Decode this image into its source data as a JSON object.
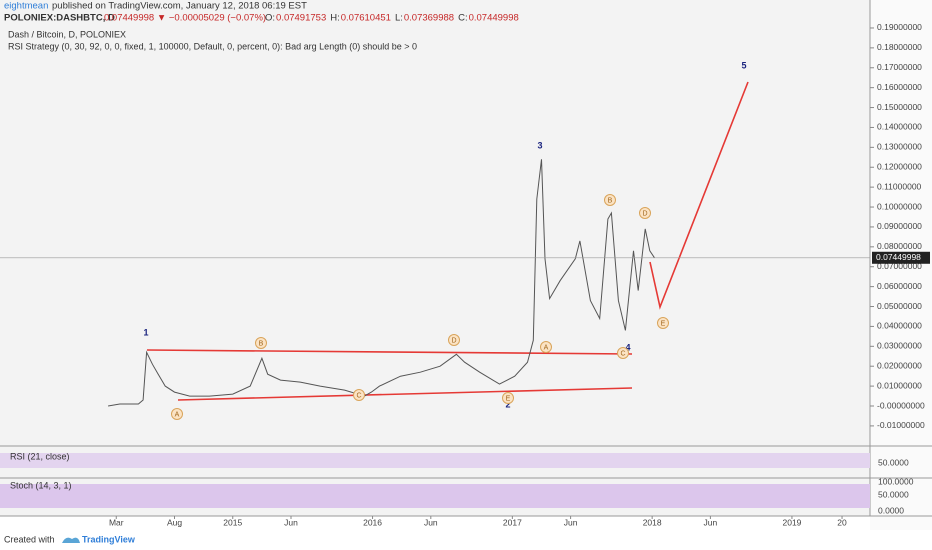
{
  "header": {
    "author": "eightmean",
    "published": "published on TradingView.com, January 12, 2018 06:19 EST",
    "symbol": "POLONIEX:DASHBTC, D",
    "change": "0.07449998 ▼ −0.00005029 (−0.07%)",
    "ohlc": [
      {
        "key": "O:",
        "value": "0.07491753"
      },
      {
        "key": "H:",
        "value": "0.07610451"
      },
      {
        "key": "L:",
        "value": "0.07369988"
      },
      {
        "key": "C:",
        "value": "0.07449998"
      }
    ]
  },
  "chart_data": {
    "type": "line",
    "title": "Dash / Bitcoin, D, POLONIEX",
    "subtitle": "RSI Strategy (0, 30, 92, 0, 0, fixed, 1, 100000, Default, 0, percent, 0): Bad arg Length (0) should be > 0",
    "color": "#555555",
    "x": [
      1.3,
      2.3,
      3.9,
      4.3,
      4.6,
      5.1,
      5.6,
      6.2,
      7.0,
      8.3,
      10.0,
      12.0,
      13.5,
      14.5,
      15.0,
      16.1,
      17.8,
      19.5,
      21.6,
      23.3,
      23.9,
      24.6,
      26.4,
      28.1,
      29.8,
      31.2,
      31.9,
      33.2,
      34.9,
      36.2,
      37.3,
      37.8,
      38.1,
      38.5,
      38.8,
      39.2,
      40.1,
      41.4,
      41.8,
      42.7,
      43.5,
      44.2,
      44.5,
      45.1,
      45.7,
      46.4,
      46.8,
      47.4,
      47.8,
      48.2
    ],
    "values": [
      0.0,
      0.001,
      0.001,
      0.003,
      0.027,
      0.021,
      0.016,
      0.01,
      0.007,
      0.005,
      0.005,
      0.006,
      0.01,
      0.024,
      0.016,
      0.013,
      0.012,
      0.01,
      0.008,
      0.005,
      0.007,
      0.01,
      0.015,
      0.017,
      0.02,
      0.026,
      0.022,
      0.017,
      0.011,
      0.015,
      0.022,
      0.033,
      0.104,
      0.124,
      0.074,
      0.054,
      0.063,
      0.074,
      0.083,
      0.053,
      0.044,
      0.094,
      0.097,
      0.053,
      0.038,
      0.078,
      0.058,
      0.089,
      0.078,
      0.0745
    ],
    "last_price_label": "0.07449998",
    "xlim": [
      -7.98,
      66.7
    ],
    "xticks": [
      {
        "value": 2,
        "label": "Mar"
      },
      {
        "value": 7,
        "label": "Aug"
      },
      {
        "value": 12,
        "label": "2015"
      },
      {
        "value": 17,
        "label": "Jun"
      },
      {
        "value": 24,
        "label": "2016"
      },
      {
        "value": 29,
        "label": "Jun"
      },
      {
        "value": 36,
        "label": "2017"
      },
      {
        "value": 41,
        "label": "Jun"
      },
      {
        "value": 48,
        "label": "2018"
      },
      {
        "value": 53,
        "label": "Jun"
      },
      {
        "value": 60,
        "label": "2019"
      },
      {
        "value": 64.3,
        "label": "20"
      }
    ],
    "ylim": [
      -0.0196,
      0.193
    ],
    "yticks": [
      {
        "value": 0.19,
        "label": "0.19000000"
      },
      {
        "value": 0.18,
        "label": "0.18000000"
      },
      {
        "value": 0.17,
        "label": "0.17000000"
      },
      {
        "value": 0.16,
        "label": "0.16000000"
      },
      {
        "value": 0.15,
        "label": "0.15000000"
      },
      {
        "value": 0.14,
        "label": "0.14000000"
      },
      {
        "value": 0.13,
        "label": "0.13000000"
      },
      {
        "value": 0.12,
        "label": "0.12000000"
      },
      {
        "value": 0.11,
        "label": "0.11000000"
      },
      {
        "value": 0.1,
        "label": "0.10000000"
      },
      {
        "value": 0.09,
        "label": "0.09000000"
      },
      {
        "value": 0.08,
        "label": "0.08000000"
      },
      {
        "value": 0.07,
        "label": "0.07000000"
      },
      {
        "value": 0.06,
        "label": "0.06000000"
      },
      {
        "value": 0.05,
        "label": "0.05000000"
      },
      {
        "value": 0.04,
        "label": "0.04000000"
      },
      {
        "value": 0.03,
        "label": "0.03000000"
      },
      {
        "value": 0.02,
        "label": "0.02000000"
      },
      {
        "value": 0.01,
        "label": "0.01000000"
      },
      {
        "value": 0,
        "label": "-0.00000000"
      },
      {
        "value": -0.01,
        "label": "-0.01000000"
      }
    ],
    "grid": false,
    "wave_labels": [
      "1",
      "2",
      "3",
      "4",
      "5"
    ],
    "correction_labels": [
      "A",
      "B",
      "C",
      "D",
      "E",
      "A",
      "B",
      "C",
      "D",
      "E"
    ]
  },
  "indicators": {
    "rsi": {
      "label": "RSI (21, close)",
      "tick": "50.0000"
    },
    "stoch": {
      "label": "Stoch (14, 3, 1)",
      "ticks": [
        "100.0000",
        "50.0000",
        "0.0000"
      ]
    }
  },
  "footer": {
    "created": "Created with",
    "brand": "TradingView"
  }
}
